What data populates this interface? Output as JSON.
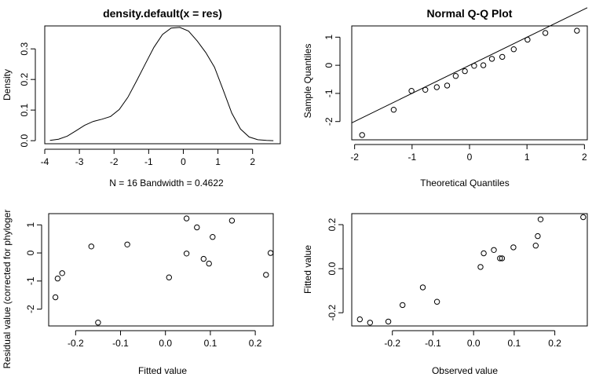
{
  "figure_background": "#ffffff",
  "chart_data": [
    {
      "type": "line",
      "title": "density.default(x = res)",
      "xlabel": "N = 16   Bandwidth = 0.4622",
      "ylabel": "Density",
      "xlim": [
        -4,
        2.8
      ],
      "ylim": [
        -0.01,
        0.375
      ],
      "xticks": [
        -4,
        -3,
        -2,
        -1,
        0,
        1,
        2
      ],
      "yticks": [
        0.0,
        0.1,
        0.2,
        0.3
      ],
      "ytick_labels": [
        "0.0",
        "0.1",
        "0.2",
        "0.3"
      ],
      "x": [
        -3.85,
        -3.6,
        -3.35,
        -3.1,
        -2.85,
        -2.6,
        -2.35,
        -2.1,
        -1.85,
        -1.6,
        -1.35,
        -1.1,
        -0.85,
        -0.6,
        -0.35,
        -0.1,
        0.15,
        0.4,
        0.65,
        0.9,
        1.15,
        1.4,
        1.65,
        1.9,
        2.15,
        2.4,
        2.6
      ],
      "y": [
        0.001,
        0.005,
        0.015,
        0.032,
        0.05,
        0.063,
        0.07,
        0.079,
        0.102,
        0.142,
        0.195,
        0.25,
        0.305,
        0.347,
        0.368,
        0.37,
        0.358,
        0.326,
        0.288,
        0.24,
        0.166,
        0.09,
        0.038,
        0.012,
        0.003,
        0.001,
        0.0
      ]
    },
    {
      "type": "scatter",
      "title": "Normal Q-Q Plot",
      "xlabel": "Theoretical Quantiles",
      "ylabel": "Sample Quantiles",
      "xlim": [
        -2.05,
        2.05
      ],
      "ylim": [
        -2.65,
        1.4
      ],
      "xticks": [
        -2,
        -1,
        0,
        1,
        2
      ],
      "yticks": [
        -2,
        -1,
        0,
        1
      ],
      "x": [
        -1.87,
        -1.32,
        -1.01,
        -0.77,
        -0.57,
        -0.39,
        -0.24,
        -0.08,
        0.08,
        0.24,
        0.39,
        0.57,
        0.77,
        1.01,
        1.32,
        1.87
      ],
      "y": [
        -2.48,
        -1.58,
        -0.91,
        -0.87,
        -0.78,
        -0.72,
        -0.38,
        -0.21,
        -0.02,
        0.0,
        0.23,
        0.3,
        0.57,
        0.91,
        1.15,
        1.23
      ],
      "reference_line": {
        "slope": 0.999,
        "intercept": 0.0
      }
    },
    {
      "type": "scatter",
      "title": "",
      "xlabel": "Fitted value",
      "ylabel": "Residual value (corrected for phyloger",
      "xlim": [
        -0.26,
        0.24
      ],
      "ylim": [
        -2.6,
        1.4
      ],
      "xticks": [
        -0.2,
        -0.1,
        0.0,
        0.1,
        0.2
      ],
      "xtick_labels": [
        "-0.2",
        "-0.1",
        "0.0",
        "0.1",
        "0.2"
      ],
      "yticks": [
        -2,
        -1,
        0,
        1
      ],
      "x": [
        -0.245,
        -0.24,
        -0.23,
        -0.165,
        -0.15,
        -0.085,
        0.008,
        0.047,
        0.047,
        0.07,
        0.085,
        0.097,
        0.105,
        0.148,
        0.224,
        0.234
      ],
      "y": [
        -1.58,
        -0.91,
        -0.72,
        0.23,
        -2.48,
        0.3,
        -0.87,
        1.23,
        -0.02,
        0.91,
        -0.21,
        -0.38,
        0.57,
        1.15,
        -0.78,
        0.0
      ]
    },
    {
      "type": "scatter",
      "title": "",
      "xlabel": "Observed value",
      "ylabel": "Fitted value",
      "xlim": [
        -0.3,
        0.28
      ],
      "ylim": [
        -0.26,
        0.25
      ],
      "xticks": [
        -0.2,
        -0.1,
        0.0,
        0.1,
        0.2
      ],
      "xtick_labels": [
        "-0.2",
        "-0.1",
        "0.0",
        "0.1",
        "0.2"
      ],
      "yticks": [
        -0.2,
        0.0,
        0.2
      ],
      "ytick_labels": [
        "-0.2",
        "0.0",
        "0.2"
      ],
      "x": [
        -0.28,
        -0.255,
        -0.21,
        -0.175,
        -0.125,
        -0.09,
        0.017,
        0.025,
        0.05,
        0.065,
        0.07,
        0.098,
        0.153,
        0.158,
        0.165,
        0.27
      ],
      "y": [
        -0.23,
        -0.245,
        -0.24,
        -0.165,
        -0.085,
        -0.15,
        0.008,
        0.07,
        0.085,
        0.047,
        0.047,
        0.097,
        0.105,
        0.148,
        0.224,
        0.234
      ]
    }
  ]
}
